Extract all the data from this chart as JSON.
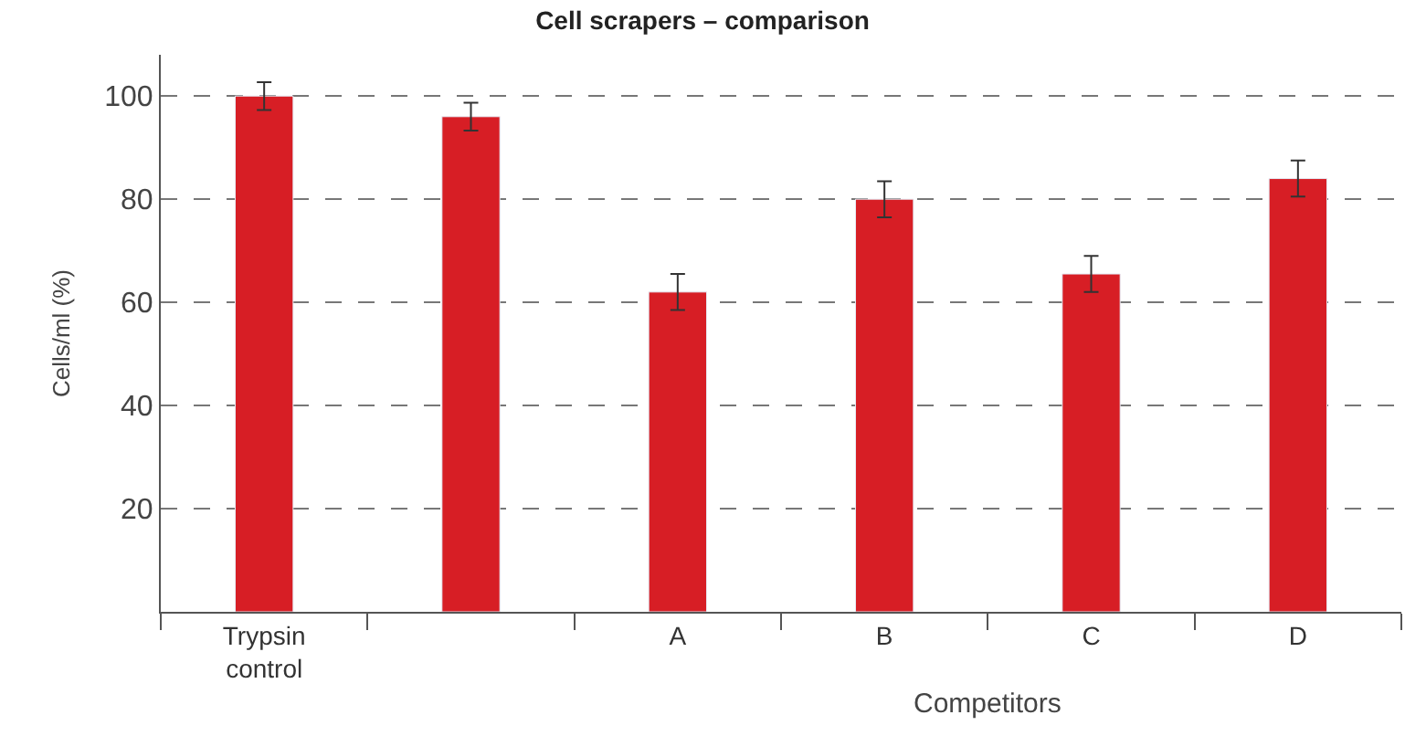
{
  "chart_data": {
    "type": "bar",
    "title": "Cell scrapers – comparison",
    "ylabel": "Cells/ml (%)",
    "categories": [
      "Trypsin\ncontrol",
      null,
      "A",
      "B",
      "C",
      "D"
    ],
    "values": [
      100,
      96,
      62,
      80,
      65.5,
      84
    ],
    "errors": [
      2.7,
      2.7,
      3.5,
      3.5,
      3.5,
      3.5
    ],
    "color": "#d71e25",
    "ylim": [
      0,
      108
    ],
    "yticks": [
      20,
      40,
      60,
      80,
      100
    ],
    "grid": "y",
    "annotations": [
      "Competitors"
    ]
  }
}
